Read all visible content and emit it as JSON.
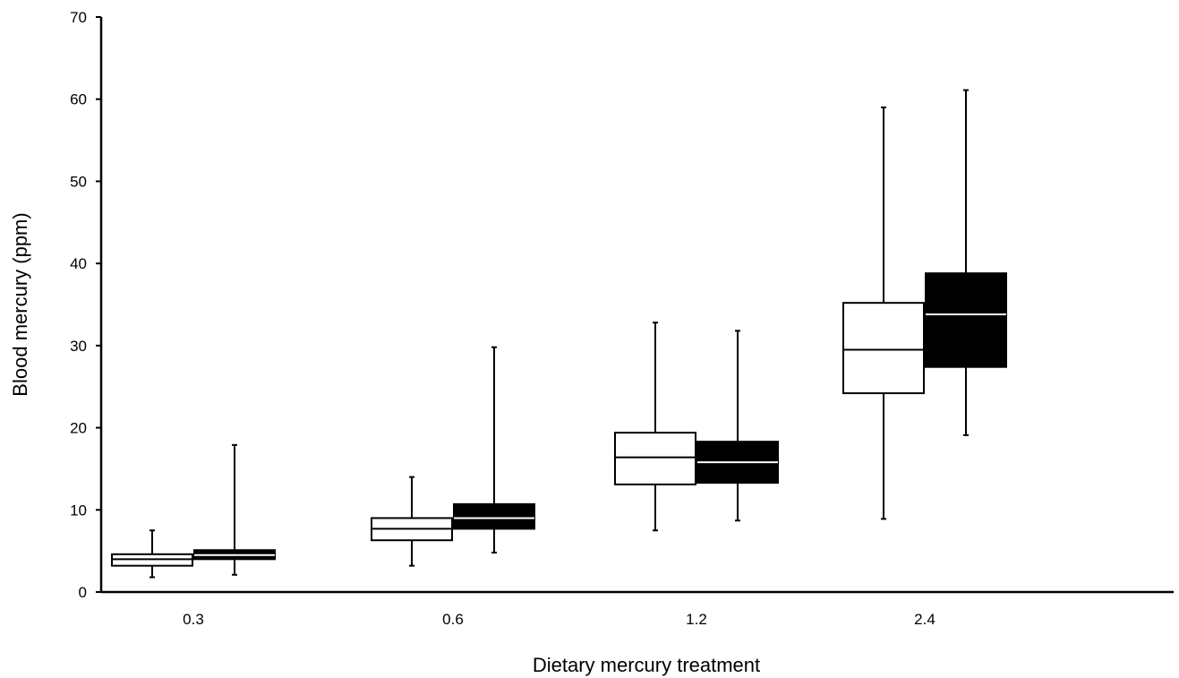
{
  "chart_data": {
    "type": "box",
    "title": "",
    "xlabel": "Dietary mercury treatment",
    "ylabel": "Blood mercury (ppm)",
    "ylim": [
      0,
      70
    ],
    "yticks": [
      0,
      10,
      20,
      30,
      40,
      50,
      60,
      70
    ],
    "grid": false,
    "legend": "none",
    "categories": [
      "0.3",
      "0.6",
      "1.2",
      "2.4"
    ],
    "series": [
      {
        "fill": "#ffffff",
        "median_color": "#000000",
        "boxes": [
          {
            "min": 1.8,
            "q1": 3.2,
            "median": 4.0,
            "q3": 4.6,
            "max": 7.5
          },
          {
            "min": 3.2,
            "q1": 6.3,
            "median": 7.7,
            "q3": 9.0,
            "max": 14.0
          },
          {
            "min": 7.5,
            "q1": 13.1,
            "median": 16.4,
            "q3": 19.4,
            "max": 32.8
          },
          {
            "min": 8.9,
            "q1": 24.2,
            "median": 29.5,
            "q3": 35.2,
            "max": 59.0
          }
        ]
      },
      {
        "fill": "#000000",
        "median_color": "#ffffff",
        "boxes": [
          {
            "min": 2.1,
            "q1": 4.0,
            "median": 4.5,
            "q3": 5.1,
            "max": 17.9
          },
          {
            "min": 4.8,
            "q1": 7.7,
            "median": 9.0,
            "q3": 10.7,
            "max": 29.8
          },
          {
            "min": 8.7,
            "q1": 13.3,
            "median": 15.8,
            "q3": 18.3,
            "max": 31.8
          },
          {
            "min": 19.1,
            "q1": 27.4,
            "median": 33.8,
            "q3": 38.8,
            "max": 61.1
          }
        ]
      }
    ]
  }
}
